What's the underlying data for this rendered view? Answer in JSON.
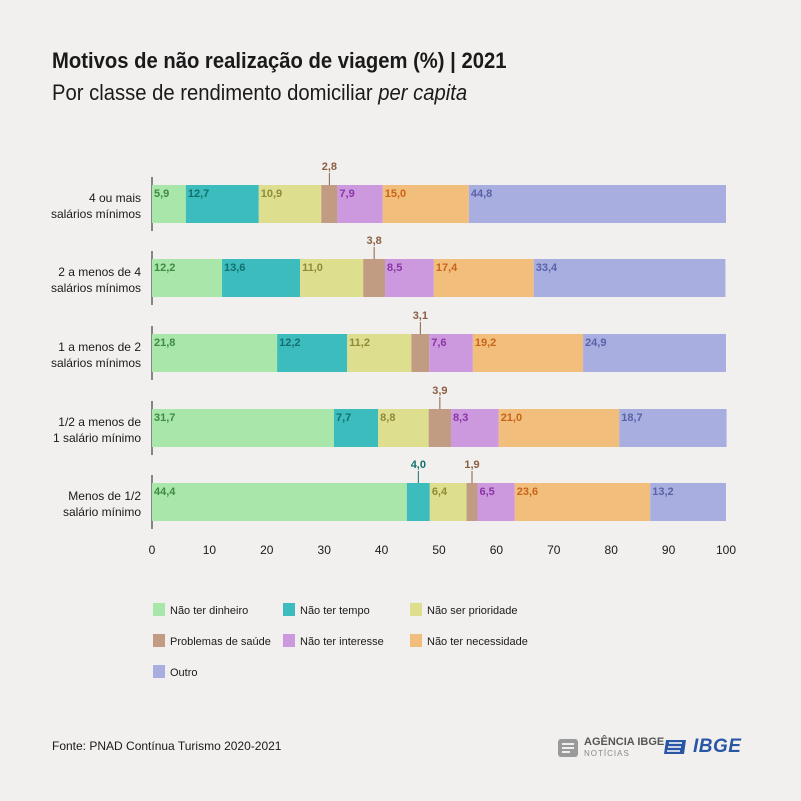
{
  "title": "Motivos de não realização de viagem (%) | 2021",
  "subtitle_main": "Por classe de rendimento domiciliar ",
  "subtitle_italic": "per capita",
  "source": "Fonte: PNAD Contínua Turismo 2020-2021",
  "logos": {
    "agencia_main": "AGÊNCIA IBGE",
    "agencia_sub": "NOTÍCIAS",
    "ibge": "IBGE"
  },
  "colors": {
    "background": "#f2f0ee",
    "nao_ter_dinheiro": "#a8e6a9",
    "nao_ter_tempo": "#3cbcbc",
    "nao_ser_prioridade": "#dede8f",
    "problemas_de_saude": "#c19b82",
    "nao_ter_interesse": "#cc99de",
    "nao_ter_necessidade": "#f2be7c",
    "outro": "#a9aee0"
  },
  "chart_data": {
    "type": "bar",
    "orientation": "horizontal",
    "stacked": true,
    "title": "Motivos de não realização de viagem (%) | 2021",
    "subtitle": "Por classe de rendimento domiciliar per capita",
    "categories": [
      [
        "4 ou mais",
        "salários mínimos"
      ],
      [
        "2 a menos de 4",
        "salários mínimos"
      ],
      [
        "1 a menos de 2",
        "salários mínimos"
      ],
      [
        "1/2 a menos de",
        "1 salário mínimo"
      ],
      [
        "Menos de 1/2",
        "salário mínimo"
      ]
    ],
    "xlim": [
      0,
      100
    ],
    "xticks": [
      "0",
      "10",
      "20",
      "30",
      "40",
      "50",
      "60",
      "70",
      "80",
      "90",
      "100"
    ],
    "grid": false,
    "legend_position": "bottom",
    "series": [
      {
        "name": "Não ter dinheiro",
        "values": [
          5.9,
          12.2,
          21.8,
          31.7,
          44.4
        ],
        "labels": [
          "5,9",
          "12,2",
          "21,8",
          "31,7",
          "44,4"
        ],
        "label_color": "#3f8a44",
        "callout": [
          false,
          false,
          false,
          false,
          false
        ]
      },
      {
        "name": "Não ter tempo",
        "values": [
          12.7,
          13.6,
          12.2,
          7.7,
          4.0
        ],
        "labels": [
          "12,7",
          "13,6",
          "12,2",
          "7,7",
          "4,0"
        ],
        "label_color": "#136f6f",
        "callout": [
          false,
          false,
          false,
          false,
          true
        ]
      },
      {
        "name": "Não ser prioridade",
        "values": [
          10.9,
          11.0,
          11.2,
          8.8,
          6.4
        ],
        "labels": [
          "10,9",
          "11,0",
          "11,2",
          "8,8",
          "6,4"
        ],
        "label_color": "#8c8c36",
        "callout": [
          false,
          false,
          false,
          false,
          false
        ]
      },
      {
        "name": "Problemas de saúde",
        "values": [
          2.8,
          3.8,
          3.1,
          3.9,
          1.9
        ],
        "labels": [
          "2,8",
          "3,8",
          "3,1",
          "3,9",
          "1,9"
        ],
        "label_color": "#8a5e42",
        "callout": [
          true,
          true,
          true,
          true,
          true
        ]
      },
      {
        "name": "Não ter interesse",
        "values": [
          7.9,
          8.5,
          7.6,
          8.3,
          6.5
        ],
        "labels": [
          "7,9",
          "8,5",
          "7,6",
          "8,3",
          "6,5"
        ],
        "label_color": "#8a35a6",
        "callout": [
          false,
          false,
          false,
          false,
          false
        ]
      },
      {
        "name": "Não ter necessidade",
        "values": [
          15.0,
          17.4,
          19.2,
          21.0,
          23.6
        ],
        "labels": [
          "15,0",
          "17,4",
          "19,2",
          "21,0",
          "23,6"
        ],
        "label_color": "#c8641a",
        "callout": [
          false,
          false,
          false,
          false,
          false
        ]
      },
      {
        "name": "Outro",
        "values": [
          44.8,
          33.4,
          24.9,
          18.7,
          13.2
        ],
        "labels": [
          "44,8",
          "33,4",
          "24,9",
          "18,7",
          "13,2"
        ],
        "label_color": "#5b61a8",
        "callout": [
          false,
          false,
          false,
          false,
          false
        ]
      }
    ]
  }
}
